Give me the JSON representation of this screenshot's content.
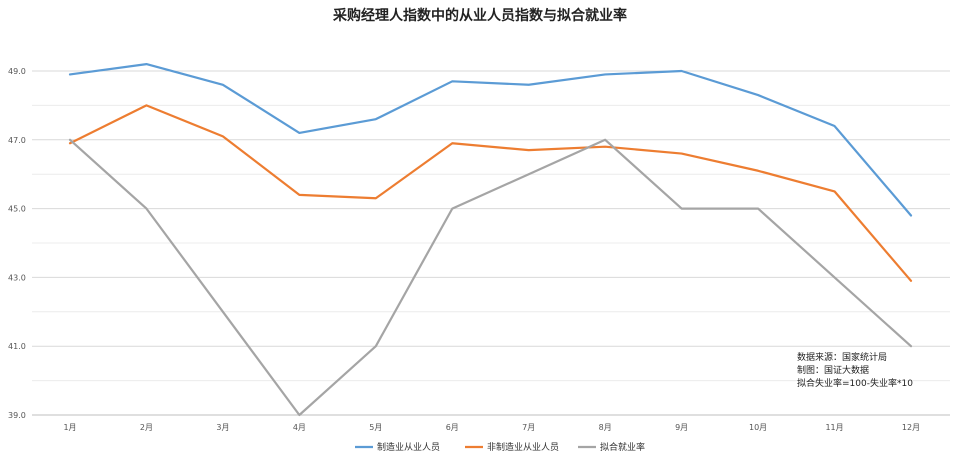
{
  "chart_data": {
    "type": "line",
    "title": "采购经理人指数中的从业人员指数与拟合就业率",
    "categories": [
      "1月",
      "2月",
      "3月",
      "4月",
      "5月",
      "6月",
      "7月",
      "8月",
      "9月",
      "10月",
      "11月",
      "12月"
    ],
    "ylim": [
      39.0,
      49.8
    ],
    "yticks": [
      "39.0",
      "41.0",
      "43.0",
      "45.0",
      "47.0",
      "49.0"
    ],
    "ytick_values": [
      39,
      41,
      43,
      45,
      47,
      49
    ],
    "grid": "horizontal",
    "legend_position": "bottom",
    "series": [
      {
        "name": "制造业从业人员",
        "color": "#5b9bd5",
        "values": [
          48.9,
          49.2,
          48.6,
          47.2,
          47.6,
          48.7,
          48.6,
          48.9,
          49.0,
          48.3,
          47.4,
          44.8
        ]
      },
      {
        "name": "非制造业从业人员",
        "color": "#ed7d31",
        "values": [
          46.9,
          48.0,
          47.1,
          45.4,
          45.3,
          46.9,
          46.7,
          46.8,
          46.6,
          46.1,
          45.5,
          42.9
        ]
      },
      {
        "name": "拟合就业率",
        "color": "#a5a5a5",
        "values": [
          47.0,
          45.0,
          42.0,
          39.0,
          41.0,
          45.0,
          46.0,
          47.0,
          45.0,
          45.0,
          43.0,
          41.0
        ]
      }
    ],
    "notes": [
      "数据来源：国家统计局",
      "制图：国证大数据",
      "拟合失业率=100-失业率*10"
    ]
  }
}
